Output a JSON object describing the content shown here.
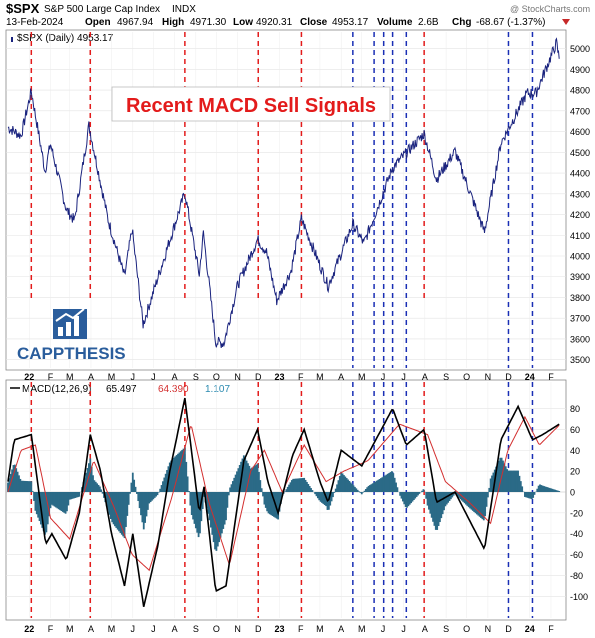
{
  "header": {
    "symbol": "$SPX",
    "name": "S&P 500 Large Cap Index",
    "exchange": "INDX",
    "date": "13-Feb-2024",
    "open_label": "Open",
    "open": "4967.94",
    "high_label": "High",
    "high": "4971.30",
    "low_label": "Low",
    "low": "4920.31",
    "close_label": "Close",
    "close": "4953.17",
    "volume_label": "Volume",
    "volume": "2.6B",
    "chg_label": "Chg",
    "chg": "-68.67 (-1.37%)",
    "watermark": "@ StockCharts.com"
  },
  "price_panel": {
    "legend": "$SPX (Daily) 4953.17",
    "annotation": "Recent MACD Sell Signals",
    "y_ticks": [
      3500,
      3600,
      3700,
      3800,
      3900,
      4000,
      4100,
      4200,
      4300,
      4400,
      4500,
      4600,
      4700,
      4800,
      4900,
      5000
    ]
  },
  "macd_panel": {
    "legend_name": "MACD(12,26,9)",
    "macd_value": "65.497",
    "signal_value": "64.390",
    "hist_value": "1.107",
    "y_ticks": [
      -100,
      -80,
      -60,
      -40,
      -20,
      0,
      20,
      40,
      60,
      80
    ]
  },
  "logo": {
    "text": "CAPPTHESIS"
  },
  "colors": {
    "price_line": "#1a237e",
    "macd_line": "#000000",
    "signal_line": "#d32f2f",
    "histogram": "#2b6a87",
    "sell_red": "#e31b1b",
    "sell_blue": "#1a2fb5",
    "annotation_text": "#e31b1b",
    "logo_blue": "#2a5d9c"
  },
  "chart_data": {
    "type": "line",
    "x_ticks": [
      "22",
      "F",
      "M",
      "A",
      "M",
      "J",
      "J",
      "A",
      "S",
      "O",
      "N",
      "D",
      "23",
      "F",
      "M",
      "A",
      "M",
      "J",
      "J",
      "A",
      "S",
      "O",
      "N",
      "D",
      "24",
      "F"
    ],
    "series": [
      {
        "name": "$SPX",
        "points": [
          [
            "2021-12-01",
            4620
          ],
          [
            "2021-12-20",
            4580
          ],
          [
            "2022-01-04",
            4795
          ],
          [
            "2022-01-24",
            4410
          ],
          [
            "2022-02-01",
            4540
          ],
          [
            "2022-02-24",
            4225
          ],
          [
            "2022-03-08",
            4170
          ],
          [
            "2022-03-29",
            4630
          ],
          [
            "2022-04-26",
            4175
          ],
          [
            "2022-05-20",
            3900
          ],
          [
            "2022-05-31",
            4130
          ],
          [
            "2022-06-16",
            3670
          ],
          [
            "2022-07-08",
            3900
          ],
          [
            "2022-08-16",
            4305
          ],
          [
            "2022-09-06",
            3910
          ],
          [
            "2022-09-12",
            4110
          ],
          [
            "2022-09-30",
            3585
          ],
          [
            "2022-10-12",
            3580
          ],
          [
            "2022-11-01",
            3860
          ],
          [
            "2022-11-30",
            4080
          ],
          [
            "2022-12-13",
            4020
          ],
          [
            "2022-12-28",
            3785
          ],
          [
            "2023-01-18",
            3930
          ],
          [
            "2023-02-02",
            4180
          ],
          [
            "2023-03-13",
            3855
          ],
          [
            "2023-04-18",
            4155
          ],
          [
            "2023-05-04",
            4060
          ],
          [
            "2023-06-15",
            4425
          ],
          [
            "2023-07-31",
            4590
          ],
          [
            "2023-08-18",
            4370
          ],
          [
            "2023-09-14",
            4505
          ],
          [
            "2023-10-27",
            4115
          ],
          [
            "2023-11-20",
            4545
          ],
          [
            "2023-12-28",
            4785
          ],
          [
            "2024-01-10",
            4785
          ],
          [
            "2024-02-09",
            5027
          ],
          [
            "2024-02-13",
            4953
          ]
        ]
      },
      {
        "name": "MACD",
        "points": [
          [
            "2021-12-01",
            10
          ],
          [
            "2021-12-10",
            50
          ],
          [
            "2022-01-04",
            55
          ],
          [
            "2022-01-25",
            -50
          ],
          [
            "2022-02-03",
            -40
          ],
          [
            "2022-02-24",
            -65
          ],
          [
            "2022-03-15",
            -20
          ],
          [
            "2022-03-31",
            55
          ],
          [
            "2022-04-15",
            20
          ],
          [
            "2022-05-01",
            -40
          ],
          [
            "2022-05-20",
            -90
          ],
          [
            "2022-06-01",
            -40
          ],
          [
            "2022-06-17",
            -110
          ],
          [
            "2022-07-08",
            -50
          ],
          [
            "2022-07-25",
            20
          ],
          [
            "2022-08-16",
            90
          ],
          [
            "2022-09-06",
            -20
          ],
          [
            "2022-09-13",
            5
          ],
          [
            "2022-09-30",
            -95
          ],
          [
            "2022-10-15",
            -90
          ],
          [
            "2022-11-10",
            30
          ],
          [
            "2022-11-30",
            60
          ],
          [
            "2022-12-15",
            10
          ],
          [
            "2022-12-30",
            -20
          ],
          [
            "2023-01-20",
            35
          ],
          [
            "2023-02-06",
            60
          ],
          [
            "2023-03-01",
            10
          ],
          [
            "2023-03-13",
            -10
          ],
          [
            "2023-04-01",
            40
          ],
          [
            "2023-05-01",
            25
          ],
          [
            "2023-06-15",
            80
          ],
          [
            "2023-07-05",
            45
          ],
          [
            "2023-07-31",
            60
          ],
          [
            "2023-08-18",
            -10
          ],
          [
            "2023-09-14",
            0
          ],
          [
            "2023-10-27",
            -55
          ],
          [
            "2023-11-20",
            50
          ],
          [
            "2023-12-15",
            82
          ],
          [
            "2024-01-05",
            50
          ],
          [
            "2024-01-20",
            55
          ],
          [
            "2024-02-13",
            65
          ]
        ]
      },
      {
        "name": "Signal",
        "points": [
          [
            "2021-12-01",
            0
          ],
          [
            "2021-12-20",
            40
          ],
          [
            "2022-01-10",
            45
          ],
          [
            "2022-02-01",
            -25
          ],
          [
            "2022-03-01",
            -45
          ],
          [
            "2022-04-05",
            30
          ],
          [
            "2022-05-05",
            -15
          ],
          [
            "2022-05-31",
            -60
          ],
          [
            "2022-06-25",
            -75
          ],
          [
            "2022-07-28",
            -5
          ],
          [
            "2022-08-25",
            65
          ],
          [
            "2022-09-20",
            -10
          ],
          [
            "2022-10-20",
            -70
          ],
          [
            "2022-11-20",
            20
          ],
          [
            "2022-12-10",
            40
          ],
          [
            "2023-01-05",
            0
          ],
          [
            "2023-02-06",
            45
          ],
          [
            "2023-03-10",
            10
          ],
          [
            "2023-04-05",
            20
          ],
          [
            "2023-05-10",
            30
          ],
          [
            "2023-06-25",
            65
          ],
          [
            "2023-08-05",
            55
          ],
          [
            "2023-08-31",
            10
          ],
          [
            "2023-10-05",
            -10
          ],
          [
            "2023-11-05",
            -30
          ],
          [
            "2023-11-30",
            40
          ],
          [
            "2023-12-25",
            72
          ],
          [
            "2024-01-15",
            45
          ],
          [
            "2024-02-13",
            64
          ]
        ]
      }
    ],
    "sell_signals_red": [
      "2022-01-04",
      "2022-03-31",
      "2022-08-16",
      "2022-12-01",
      "2023-02-02",
      "2023-07-31"
    ],
    "sell_signals_blue": [
      "2023-04-18",
      "2023-05-19",
      "2023-06-02",
      "2023-06-15",
      "2023-07-05",
      "2023-12-01",
      "2024-01-05"
    ]
  }
}
